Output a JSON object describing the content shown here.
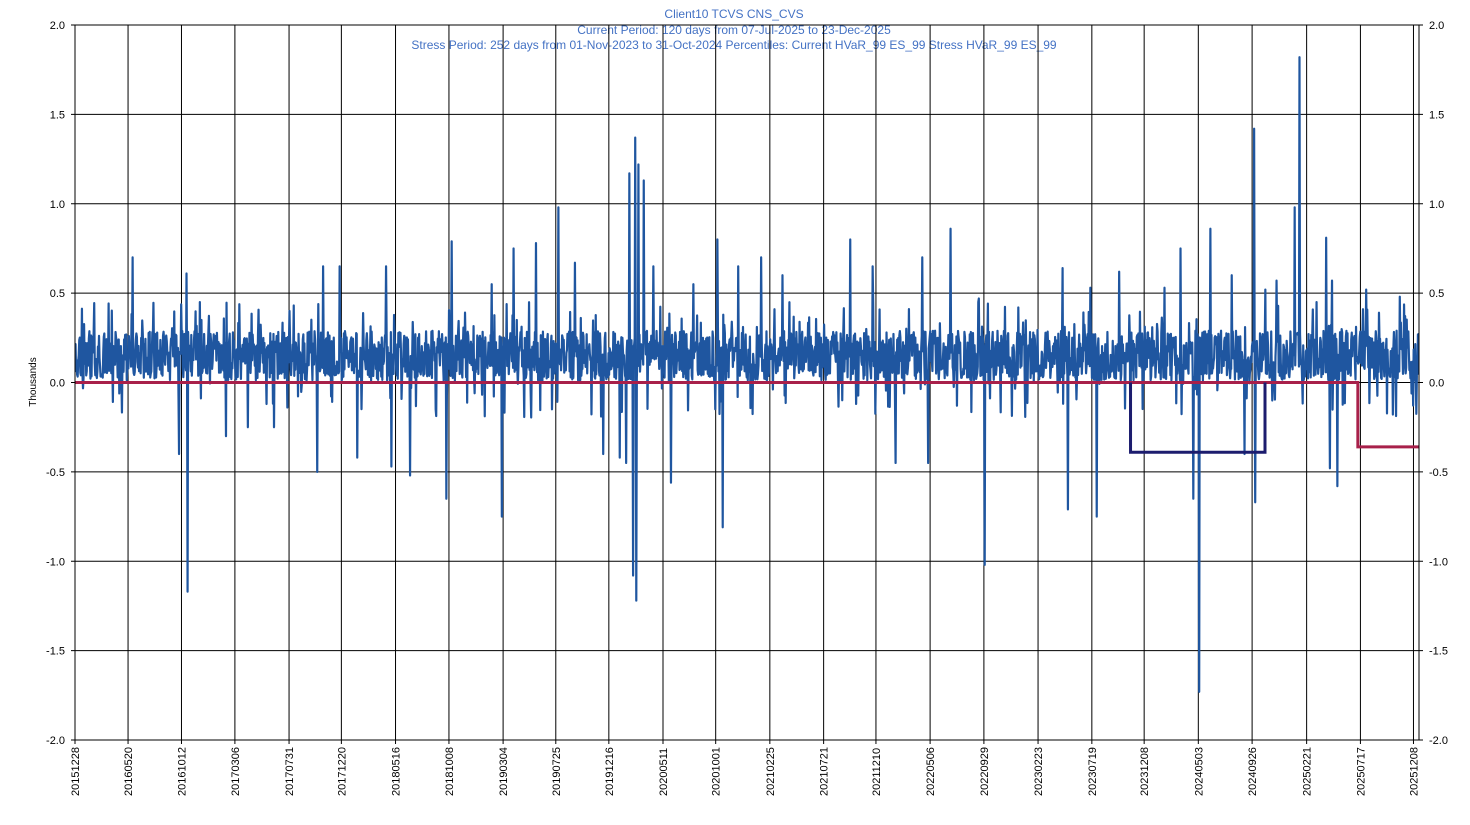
{
  "chart_data": {
    "type": "line",
    "title_lines": [
      "Client10 TCVS CNS_CVS",
      "Current Period:  120 days from 07-Jul-2025 to 23-Dec-2025",
      "Stress Period: 252 days from 01-Nov-2023 to 31-Oct-2024  Percentiles:  Current HVaR_99    ES_99    Stress HVaR_99    ES_99"
    ],
    "ylabel": "Thousands",
    "ylim": [
      -2.0,
      2.0
    ],
    "y_ticks": [
      "2.0",
      "1.5",
      "1.0",
      "0.5",
      "0.0",
      "-0.5",
      "-1.0",
      "-1.5",
      "-2.0"
    ],
    "x_tick_labels": [
      "20151228",
      "20160520",
      "20161012",
      "20170306",
      "20170731",
      "20171220",
      "20180516",
      "20181008",
      "20190304",
      "20190725",
      "20191216",
      "20200511",
      "20201001",
      "20210225",
      "20210721",
      "20211210",
      "20220506",
      "20220929",
      "20230223",
      "20230719",
      "20231208",
      "20240503",
      "20240926",
      "20250221",
      "20250717",
      "20251208"
    ],
    "x_range": [
      "20151228",
      "20251223"
    ],
    "grid": true,
    "legend": "none",
    "series": [
      {
        "role": "daily-pnl",
        "color": "#1F56A0",
        "n_points": 2520,
        "baseline": 0.15,
        "spikes": [
          {
            "date": "20160601",
            "value": 0.7
          },
          {
            "date": "20161005",
            "value": -0.4
          },
          {
            "date": "20161025",
            "value": 0.61
          },
          {
            "date": "20161028",
            "value": -1.17
          },
          {
            "date": "20161201",
            "value": 0.45
          },
          {
            "date": "20170210",
            "value": -0.3
          },
          {
            "date": "20170410",
            "value": -0.25
          },
          {
            "date": "20170620",
            "value": -0.25
          },
          {
            "date": "20170801",
            "value": 0.4
          },
          {
            "date": "20171015",
            "value": -0.5
          },
          {
            "date": "20171101",
            "value": 0.65
          },
          {
            "date": "20171215",
            "value": 0.65
          },
          {
            "date": "20180201",
            "value": -0.42
          },
          {
            "date": "20180420",
            "value": 0.65
          },
          {
            "date": "20180505",
            "value": -0.47
          },
          {
            "date": "20180625",
            "value": -0.52
          },
          {
            "date": "20181001",
            "value": -0.65
          },
          {
            "date": "20181015",
            "value": 0.79
          },
          {
            "date": "20190201",
            "value": 0.55
          },
          {
            "date": "20190301",
            "value": -0.75
          },
          {
            "date": "20190401",
            "value": 0.75
          },
          {
            "date": "20190601",
            "value": 0.78
          },
          {
            "date": "20190715",
            "value": -0.15
          },
          {
            "date": "20190801",
            "value": 0.98
          },
          {
            "date": "20190915",
            "value": 0.67
          },
          {
            "date": "20191201",
            "value": -0.4
          },
          {
            "date": "20200115",
            "value": -0.42
          },
          {
            "date": "20200201",
            "value": -0.45
          },
          {
            "date": "20200210",
            "value": 1.17
          },
          {
            "date": "20200220",
            "value": -1.08
          },
          {
            "date": "20200225",
            "value": 1.37
          },
          {
            "date": "20200228",
            "value": -1.22
          },
          {
            "date": "20200305",
            "value": 1.22
          },
          {
            "date": "20200320",
            "value": 1.13
          },
          {
            "date": "20200415",
            "value": 0.65
          },
          {
            "date": "20200601",
            "value": -0.56
          },
          {
            "date": "20200801",
            "value": 0.55
          },
          {
            "date": "20201005",
            "value": 0.8
          },
          {
            "date": "20201020",
            "value": -0.81
          },
          {
            "date": "20201201",
            "value": 0.65
          },
          {
            "date": "20210201",
            "value": 0.7
          },
          {
            "date": "20210401",
            "value": 0.6
          },
          {
            "date": "20211001",
            "value": 0.8
          },
          {
            "date": "20211201",
            "value": 0.65
          },
          {
            "date": "20220201",
            "value": -0.45
          },
          {
            "date": "20220415",
            "value": 0.7
          },
          {
            "date": "20220501",
            "value": -0.45
          },
          {
            "date": "20220701",
            "value": 0.86
          },
          {
            "date": "20220915",
            "value": 0.47
          },
          {
            "date": "20221001",
            "value": -1.02
          },
          {
            "date": "20230101",
            "value": 0.42
          },
          {
            "date": "20230501",
            "value": 0.64
          },
          {
            "date": "20230515",
            "value": -0.71
          },
          {
            "date": "20230715",
            "value": 0.53
          },
          {
            "date": "20230801",
            "value": -0.75
          },
          {
            "date": "20231001",
            "value": 0.62
          },
          {
            "date": "20231101",
            "value": -0.35
          },
          {
            "date": "20240201",
            "value": 0.53
          },
          {
            "date": "20240315",
            "value": 0.75
          },
          {
            "date": "20240420",
            "value": -0.65
          },
          {
            "date": "20240505",
            "value": -1.73
          },
          {
            "date": "20240605",
            "value": 0.86
          },
          {
            "date": "20240801",
            "value": 0.6
          },
          {
            "date": "20240905",
            "value": -0.4
          },
          {
            "date": "20241001",
            "value": 1.42
          },
          {
            "date": "20241005",
            "value": -0.67
          },
          {
            "date": "20241101",
            "value": 0.52
          },
          {
            "date": "20241201",
            "value": 0.57
          },
          {
            "date": "20250120",
            "value": 0.98
          },
          {
            "date": "20250201",
            "value": 1.82
          },
          {
            "date": "20250320",
            "value": 0.45
          },
          {
            "date": "20250415",
            "value": 0.81
          },
          {
            "date": "20250425",
            "value": -0.48
          },
          {
            "date": "20250501",
            "value": 0.57
          },
          {
            "date": "20250515",
            "value": -0.58
          },
          {
            "date": "20250801",
            "value": 0.52
          },
          {
            "date": "20251101",
            "value": 0.48
          }
        ]
      },
      {
        "role": "current-period-hvar",
        "color": "#A8204A",
        "points": [
          {
            "date": "20151228",
            "value": 0.0
          },
          {
            "date": "20250710",
            "value": 0.0
          },
          {
            "date": "20250710",
            "value": -0.36
          },
          {
            "date": "20251223",
            "value": -0.36
          }
        ]
      },
      {
        "role": "stress-period-hvar",
        "color": "#1C1C6E",
        "points": [
          {
            "date": "20231101",
            "value": 0.0
          },
          {
            "date": "20231101",
            "value": -0.39
          },
          {
            "date": "20241031",
            "value": -0.39
          },
          {
            "date": "20241031",
            "value": 0.0
          }
        ]
      }
    ]
  }
}
